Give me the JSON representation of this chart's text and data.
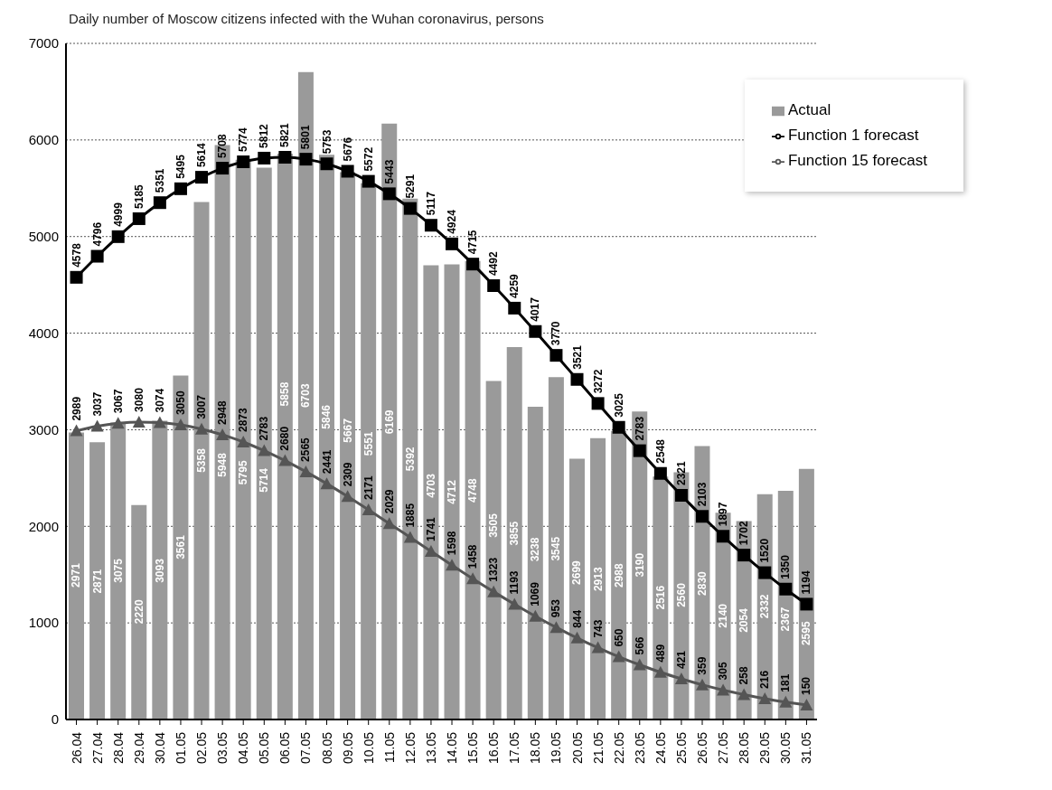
{
  "chart_data": {
    "type": "bar",
    "title": "Daily number of Moscow citizens infected with the Wuhan coronavirus, persons",
    "categories": [
      "26.04",
      "27.04",
      "28.04",
      "29.04",
      "30.04",
      "01.05",
      "02.05",
      "03.05",
      "04.05",
      "05.05",
      "06.05",
      "07.05",
      "08.05",
      "09.05",
      "10.05",
      "11.05",
      "12.05",
      "13.05",
      "14.05",
      "15.05",
      "16.05",
      "17.05",
      "18.05",
      "19.05",
      "20.05",
      "21.05",
      "22.05",
      "23.05",
      "24.05",
      "25.05",
      "26.05",
      "27.05",
      "28.05",
      "29.05",
      "30.05",
      "31.05"
    ],
    "series": [
      {
        "name": "Actual",
        "color": "#9a9a9a",
        "values": [
          2971,
          2871,
          3075,
          2220,
          3093,
          3561,
          5358,
          5948,
          5795,
          5714,
          5858,
          6703,
          5846,
          5667,
          5551,
          6169,
          5392,
          4703,
          4712,
          4748,
          3505,
          3855,
          3238,
          3545,
          2699,
          2913,
          2988,
          3190,
          2516,
          2560,
          2830,
          2140,
          2054,
          2332,
          2367,
          2595
        ]
      },
      {
        "name": "Function 1 forecast",
        "type": "line",
        "marker": "square",
        "color": "#000000",
        "values": [
          4578,
          4796,
          4999,
          5185,
          5351,
          5495,
          5614,
          5708,
          5774,
          5812,
          5821,
          5801,
          5753,
          5676,
          5572,
          5443,
          5291,
          5117,
          4924,
          4715,
          4492,
          4259,
          4017,
          3770,
          3521,
          3272,
          3025,
          2783,
          2548,
          2321,
          2103,
          1897,
          1702,
          1520,
          1350,
          1194
        ]
      },
      {
        "name": "Function 15 forecast",
        "type": "line",
        "marker": "triangle",
        "color": "#555555",
        "values": [
          2989,
          3037,
          3067,
          3080,
          3074,
          3050,
          3007,
          2948,
          2873,
          2783,
          2680,
          2565,
          2441,
          2309,
          2171,
          2029,
          1885,
          1741,
          1598,
          1458,
          1323,
          1193,
          1069,
          953,
          844,
          743,
          650,
          566,
          489,
          421,
          359,
          305,
          258,
          216,
          181,
          150
        ]
      }
    ],
    "ylim": [
      0,
      7000
    ],
    "yticks": [
      0,
      1000,
      2000,
      3000,
      4000,
      5000,
      6000,
      7000
    ],
    "grid": "y",
    "legend": "top right",
    "data_labels": true
  }
}
